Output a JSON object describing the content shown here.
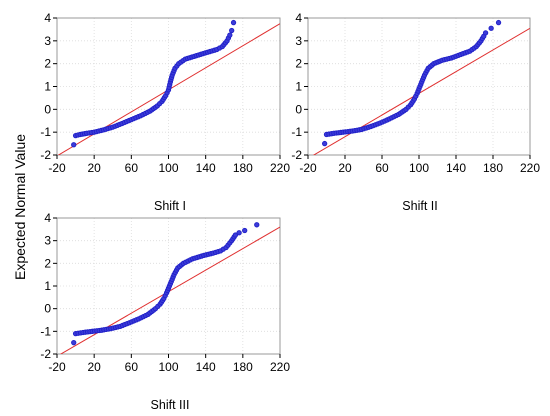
{
  "figure": {
    "ylabel": "Expected Normal Value"
  },
  "chart_data": [
    {
      "type": "scatter",
      "title": "Shift I",
      "xlabel": "",
      "ylabel": "Expected Normal Value",
      "xlim": [
        -20,
        220
      ],
      "ylim": [
        -2,
        4
      ],
      "xticks": [
        "-20",
        "20",
        "60",
        "100",
        "140",
        "180",
        "220"
      ],
      "yticks": [
        "-2",
        "-1",
        "0",
        "1",
        "2",
        "3",
        "4"
      ],
      "grid": true,
      "reference_line": {
        "x": [
          -20,
          220
        ],
        "y": [
          -2.04,
          3.75
        ]
      },
      "points": [
        [
          -2,
          -1.55
        ],
        [
          0,
          -1.15
        ],
        [
          5,
          -1.1
        ],
        [
          12,
          -1.05
        ],
        [
          20,
          -1.0
        ],
        [
          30,
          -0.9
        ],
        [
          40,
          -0.78
        ],
        [
          50,
          -0.62
        ],
        [
          60,
          -0.45
        ],
        [
          70,
          -0.28
        ],
        [
          80,
          -0.08
        ],
        [
          88,
          0.15
        ],
        [
          93,
          0.35
        ],
        [
          97,
          0.6
        ],
        [
          100,
          0.85
        ],
        [
          102,
          1.2
        ],
        [
          104,
          1.5
        ],
        [
          107,
          1.8
        ],
        [
          111,
          2.0
        ],
        [
          118,
          2.2
        ],
        [
          130,
          2.35
        ],
        [
          142,
          2.5
        ],
        [
          152,
          2.62
        ],
        [
          158,
          2.75
        ],
        [
          163,
          3.0
        ],
        [
          166,
          3.25
        ],
        [
          168,
          3.45
        ],
        [
          170,
          3.8
        ]
      ],
      "series_color": "#2020c8",
      "line_color": "#e03030"
    },
    {
      "type": "scatter",
      "title": "Shift II",
      "xlabel": "",
      "ylabel": "Expected Normal Value",
      "xlim": [
        -20,
        220
      ],
      "ylim": [
        -2,
        4
      ],
      "xticks": [
        "-20",
        "20",
        "60",
        "100",
        "140",
        "180",
        "220"
      ],
      "yticks": [
        "-2",
        "-1",
        "0",
        "1",
        "2",
        "3",
        "4"
      ],
      "grid": true,
      "reference_line": {
        "x": [
          -20,
          220
        ],
        "y": [
          -2.15,
          3.55
        ]
      },
      "points": [
        [
          -2,
          -1.5
        ],
        [
          0,
          -1.1
        ],
        [
          8,
          -1.05
        ],
        [
          18,
          -1.0
        ],
        [
          28,
          -0.95
        ],
        [
          38,
          -0.88
        ],
        [
          48,
          -0.75
        ],
        [
          58,
          -0.6
        ],
        [
          68,
          -0.42
        ],
        [
          78,
          -0.22
        ],
        [
          86,
          0.0
        ],
        [
          91,
          0.2
        ],
        [
          95,
          0.45
        ],
        [
          98,
          0.7
        ],
        [
          100,
          0.9
        ],
        [
          103,
          1.2
        ],
        [
          106,
          1.5
        ],
        [
          110,
          1.8
        ],
        [
          116,
          2.0
        ],
        [
          125,
          2.15
        ],
        [
          135,
          2.25
        ],
        [
          145,
          2.4
        ],
        [
          155,
          2.55
        ],
        [
          162,
          2.75
        ],
        [
          167,
          3.0
        ],
        [
          170,
          3.2
        ],
        [
          172,
          3.35
        ],
        [
          178,
          3.55
        ],
        [
          186,
          3.8
        ]
      ],
      "series_color": "#2020c8",
      "line_color": "#e03030"
    },
    {
      "type": "scatter",
      "title": "Shift III",
      "xlabel": "",
      "ylabel": "Expected Normal Value",
      "xlim": [
        -20,
        220
      ],
      "ylim": [
        -2,
        4
      ],
      "xticks": [
        "-20",
        "20",
        "60",
        "100",
        "140",
        "180",
        "220"
      ],
      "yticks": [
        "-2",
        "-1",
        "0",
        "1",
        "2",
        "3",
        "4"
      ],
      "grid": true,
      "reference_line": {
        "x": [
          -20,
          220
        ],
        "y": [
          -2.1,
          3.6
        ]
      },
      "points": [
        [
          -2,
          -1.5
        ],
        [
          0,
          -1.1
        ],
        [
          8,
          -1.05
        ],
        [
          18,
          -1.0
        ],
        [
          28,
          -0.95
        ],
        [
          38,
          -0.88
        ],
        [
          48,
          -0.78
        ],
        [
          58,
          -0.62
        ],
        [
          68,
          -0.45
        ],
        [
          78,
          -0.25
        ],
        [
          86,
          0.0
        ],
        [
          91,
          0.2
        ],
        [
          95,
          0.45
        ],
        [
          98,
          0.7
        ],
        [
          100,
          0.9
        ],
        [
          103,
          1.2
        ],
        [
          106,
          1.5
        ],
        [
          110,
          1.8
        ],
        [
          116,
          2.0
        ],
        [
          126,
          2.2
        ],
        [
          138,
          2.35
        ],
        [
          148,
          2.45
        ],
        [
          156,
          2.55
        ],
        [
          162,
          2.7
        ],
        [
          168,
          3.0
        ],
        [
          172,
          3.25
        ],
        [
          176,
          3.35
        ],
        [
          182,
          3.45
        ],
        [
          195,
          3.7
        ]
      ],
      "series_color": "#2020c8",
      "line_color": "#e03030"
    }
  ]
}
